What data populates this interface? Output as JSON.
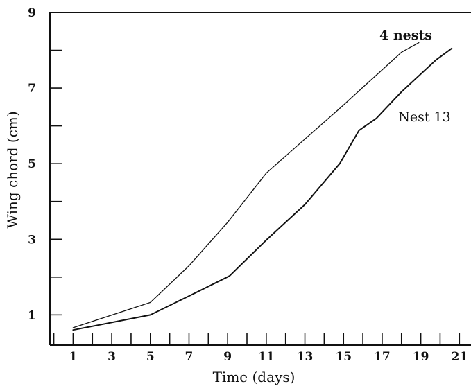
{
  "chart_data": {
    "type": "line",
    "xlabel": "Time (days)",
    "ylabel": "Wing chord (cm)",
    "xlim": [
      -0.2,
      21.6
    ],
    "ylim": [
      0.2,
      9
    ],
    "x_ticks": [
      1,
      3,
      5,
      7,
      9,
      11,
      13,
      15,
      17,
      19,
      21
    ],
    "x_minor_ticks": [
      0,
      2,
      4,
      6,
      8,
      10,
      12,
      14,
      16,
      18,
      20
    ],
    "y_ticks": [
      1,
      3,
      5,
      7,
      9
    ],
    "y_minor_ticks": [
      2,
      4,
      6,
      8
    ],
    "grid": false,
    "series": [
      {
        "name": "4 nests",
        "x": [
          1,
          5,
          7,
          9,
          10,
          11,
          13,
          15,
          16,
          17,
          18,
          18.9
        ],
        "y": [
          0.66,
          1.33,
          2.3,
          3.45,
          4.1,
          4.75,
          5.65,
          6.55,
          7.02,
          7.48,
          7.95,
          8.2
        ]
      },
      {
        "name": "Nest 13",
        "x": [
          1,
          5,
          7,
          9.1,
          11,
          13,
          14.8,
          15.8,
          16.7,
          18,
          19.8,
          20.6
        ],
        "y": [
          0.6,
          1.0,
          1.5,
          2.03,
          2.98,
          3.92,
          5.0,
          5.88,
          6.2,
          6.9,
          7.75,
          8.05
        ]
      }
    ]
  }
}
